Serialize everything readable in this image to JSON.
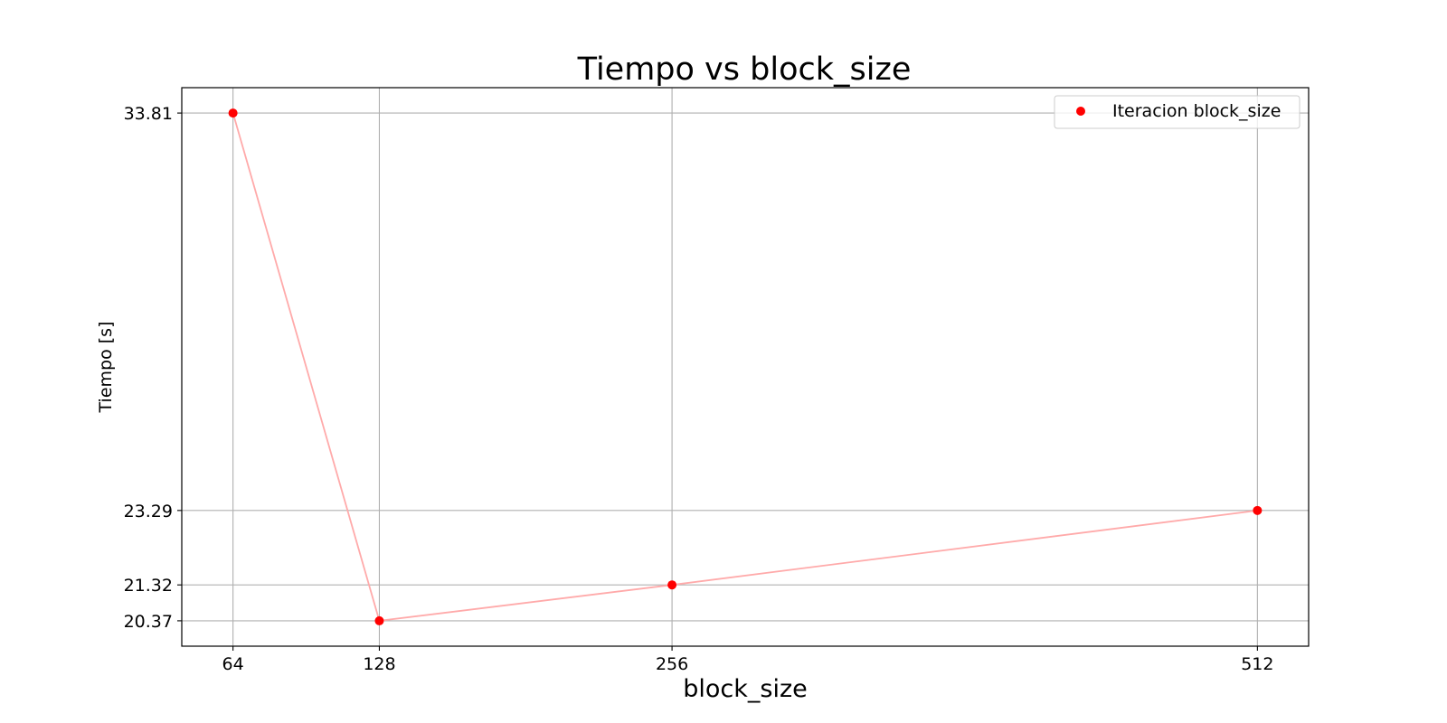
{
  "chart_data": {
    "type": "line",
    "title": "Tiempo vs block_size",
    "xlabel": "block_size",
    "ylabel": "Tiempo [s]",
    "x": [
      64,
      128,
      256,
      512
    ],
    "x_tick_labels": [
      "64",
      "128",
      "256",
      "512"
    ],
    "y_tick_values": [
      20.37,
      21.32,
      23.29,
      33.81
    ],
    "y_tick_labels": [
      "20.37",
      "21.32",
      "23.29",
      "33.81"
    ],
    "series": [
      {
        "name": "Iteracion block_size",
        "values": [
          33.81,
          20.37,
          21.32,
          23.29
        ]
      }
    ],
    "xlim": [
      41.6,
      534.4
    ],
    "ylim": [
      19.698,
      34.482
    ],
    "grid": true,
    "legend_position": "top-right",
    "colors": {
      "marker": "#ff0000",
      "line": "#ffaaaa",
      "grid": "#b0b0b0",
      "axes": "#000000"
    }
  }
}
